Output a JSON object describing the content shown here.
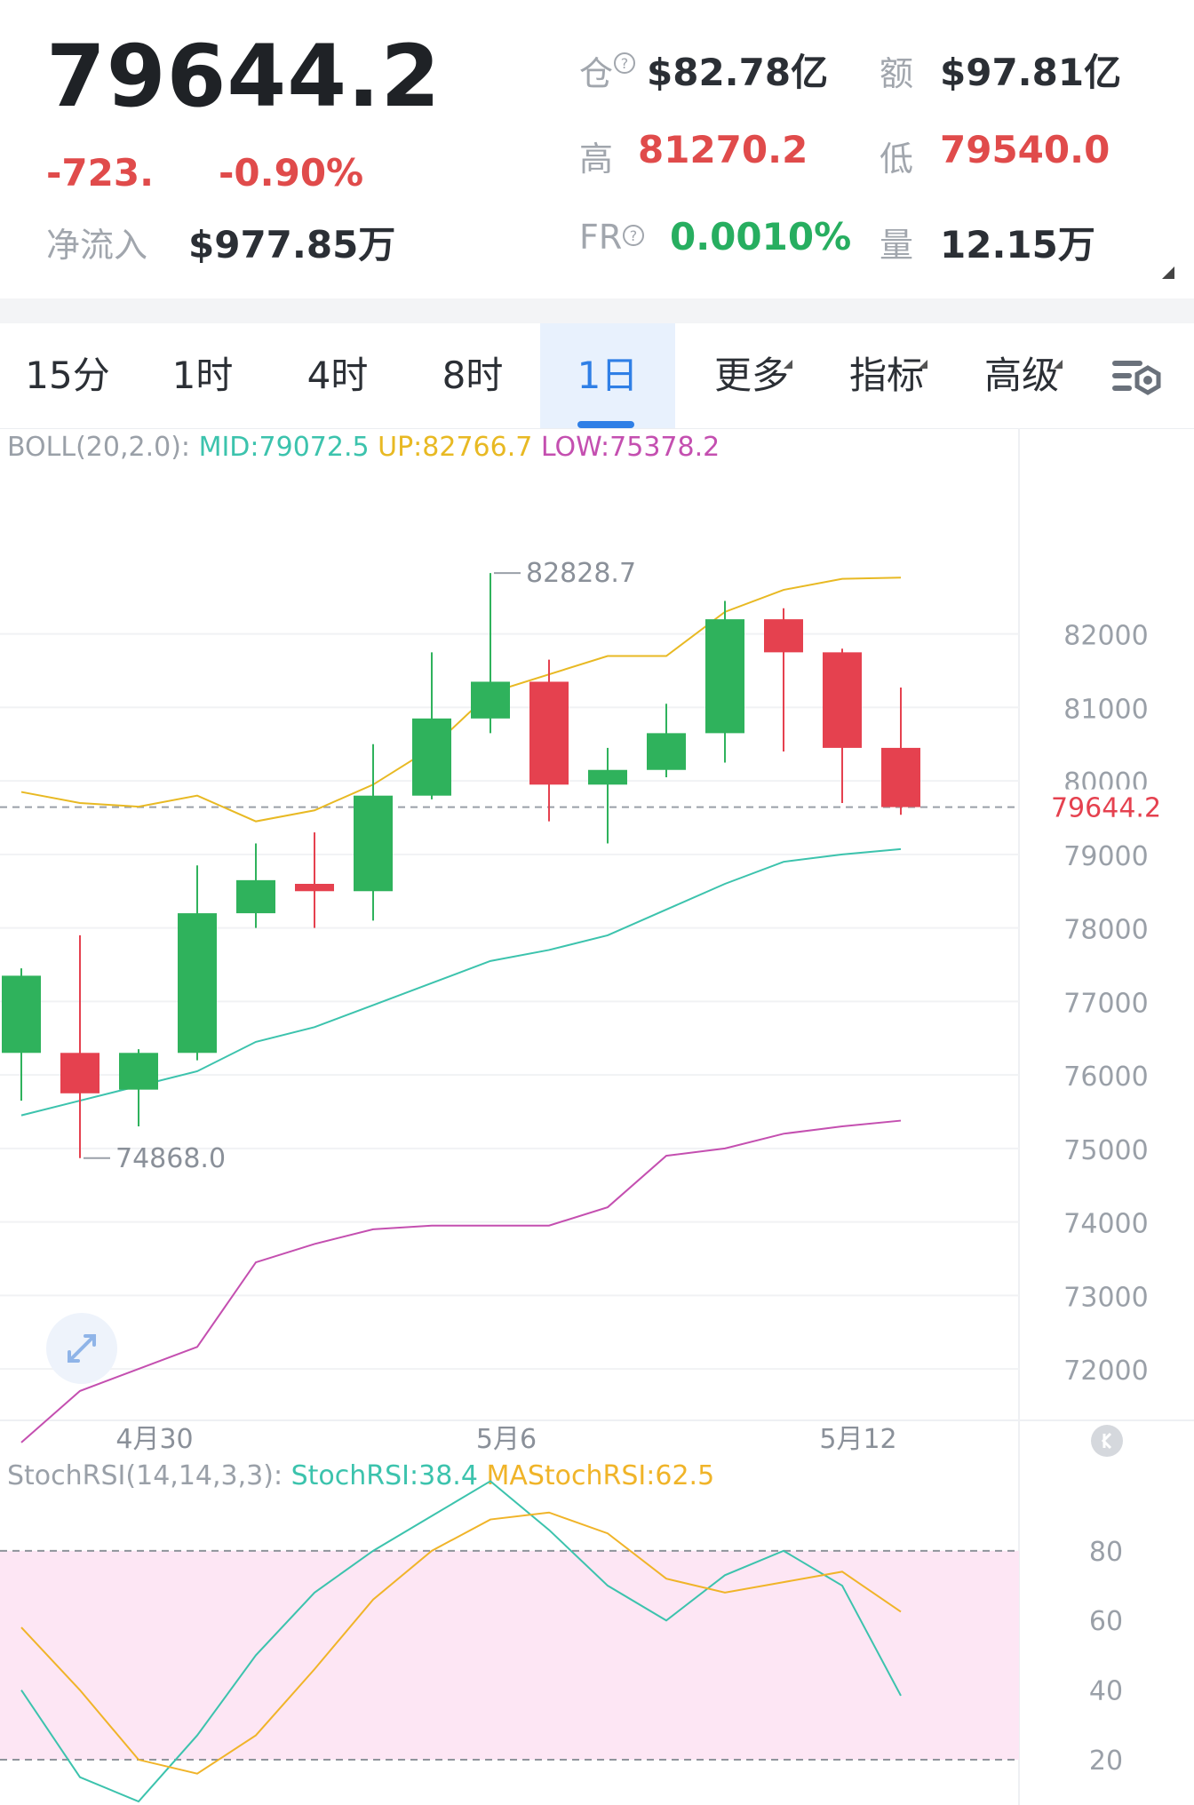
{
  "header": {
    "price": "79644.2",
    "change": "-723.",
    "change_pct": "-0.90%",
    "netflow_label": "净流入",
    "netflow_value": "$977.85万",
    "oi_label": "仓",
    "oi_value": "$82.78亿",
    "turnover_label": "额",
    "turnover_value": "$97.81亿",
    "high_label": "高",
    "high_value": "81270.2",
    "low_label": "低",
    "low_value": "79540.0",
    "fr_label": "FR",
    "fr_value": "0.0010%",
    "vol_label": "量",
    "vol_value": "12.15万",
    "help_glyph": "?"
  },
  "tabs": [
    {
      "label": "15分",
      "active": false
    },
    {
      "label": "1时",
      "active": false
    },
    {
      "label": "4时",
      "active": false
    },
    {
      "label": "8时",
      "active": false
    },
    {
      "label": "1日",
      "active": true
    },
    {
      "label": "更多",
      "active": false
    },
    {
      "label": "指标",
      "active": false
    },
    {
      "label": "高级",
      "active": false
    }
  ],
  "settings_icon": "chart-settings-icon",
  "expand_icon": "expand-icon",
  "back_icon": "double-left-icon",
  "colors": {
    "up": "#2fb25c",
    "down": "#e5414f",
    "mid": "#3cc3ad",
    "upper": "#e8b923",
    "lower": "#c44fb0",
    "stoch": "#3cc3ad",
    "mastoch": "#f0b429",
    "band": "#fde6f4"
  },
  "chart_data": [
    {
      "type": "candlestick",
      "legend": {
        "name": "BOLL(20,2.0):",
        "mid_label": "MID:79072.5",
        "up_label": "UP:82766.7",
        "low_label": "LOW:75378.2"
      },
      "current_price_label": "79644.2",
      "ylim": [
        71300,
        84800
      ],
      "yticks": [
        82000,
        81000,
        80000,
        79000,
        78000,
        77000,
        76000,
        75000,
        74000,
        73000,
        72000
      ],
      "xticks": [
        {
          "index": 2,
          "label": "4月30"
        },
        {
          "index": 8,
          "label": "5月6"
        },
        {
          "index": 14,
          "label": "5月12"
        }
      ],
      "candles": [
        {
          "o": 76300,
          "h": 77450,
          "l": 75650,
          "c": 77350
        },
        {
          "o": 76300,
          "h": 77900,
          "l": 74868,
          "c": 75750
        },
        {
          "o": 75800,
          "h": 76350,
          "l": 75300,
          "c": 76300
        },
        {
          "o": 76300,
          "h": 78850,
          "l": 76200,
          "c": 78200
        },
        {
          "o": 78200,
          "h": 79150,
          "l": 78000,
          "c": 78650
        },
        {
          "o": 78600,
          "h": 79300,
          "l": 78000,
          "c": 78500
        },
        {
          "o": 78500,
          "h": 80500,
          "l": 78100,
          "c": 79800
        },
        {
          "o": 79800,
          "h": 81750,
          "l": 79750,
          "c": 80850
        },
        {
          "o": 80850,
          "h": 82828.7,
          "l": 80650,
          "c": 81350
        },
        {
          "o": 81350,
          "h": 81650,
          "l": 79450,
          "c": 79950
        },
        {
          "o": 79950,
          "h": 80450,
          "l": 79150,
          "c": 80150
        },
        {
          "o": 80150,
          "h": 81050,
          "l": 80050,
          "c": 80650
        },
        {
          "o": 80650,
          "h": 82450,
          "l": 80250,
          "c": 82200
        },
        {
          "o": 82200,
          "h": 82350,
          "l": 80400,
          "c": 81750
        },
        {
          "o": 81750,
          "h": 81800,
          "l": 79700,
          "c": 80450
        },
        {
          "o": 80450,
          "h": 81270.2,
          "l": 79540,
          "c": 79644.2
        }
      ],
      "boll_mid": [
        75450,
        75650,
        75850,
        76050,
        76450,
        76650,
        76950,
        77250,
        77550,
        77700,
        77900,
        78250,
        78600,
        78900,
        79000,
        79072.5
      ],
      "boll_upper": [
        79850,
        79700,
        79650,
        79800,
        79450,
        79600,
        79950,
        80450,
        81200,
        81450,
        81700,
        81700,
        82300,
        82600,
        82750,
        82766.7
      ],
      "boll_lower": [
        71000,
        71700,
        72000,
        72300,
        73450,
        73700,
        73900,
        73950,
        73950,
        73950,
        74200,
        74900,
        75000,
        75200,
        75300,
        75378.2
      ],
      "max_label": "82828.7",
      "min_label": "74868.0"
    },
    {
      "type": "line",
      "legend": {
        "name": "StochRSI(14,14,3,3):",
        "stoch_label": "StochRSI:38.4",
        "ma_label": "MAStochRSI:62.5"
      },
      "ylim": [
        7,
        107
      ],
      "yticks": [
        80,
        60,
        40,
        20
      ],
      "band": [
        20,
        80
      ],
      "series": [
        {
          "name": "StochRSI",
          "values": [
            40,
            15,
            8,
            27,
            50,
            68,
            80,
            90,
            100,
            86,
            70,
            60,
            73,
            80,
            70,
            38.4
          ]
        },
        {
          "name": "MAStochRSI",
          "values": [
            58,
            40,
            20,
            16,
            27,
            46,
            66,
            80,
            89,
            91,
            85,
            72,
            68,
            71,
            74,
            62.5
          ]
        }
      ]
    }
  ]
}
